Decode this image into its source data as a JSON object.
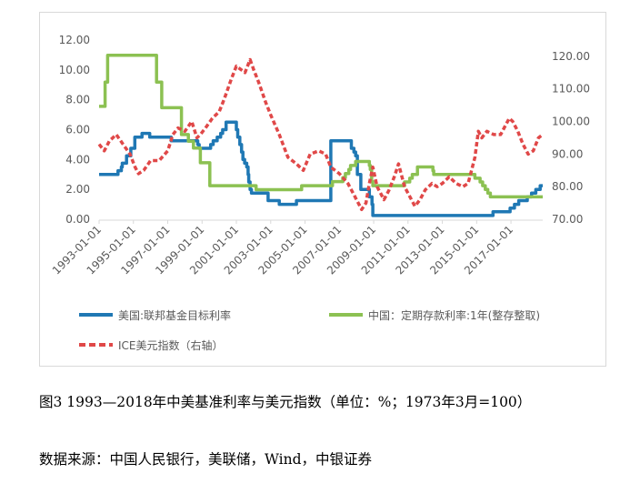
{
  "caption": {
    "title": "图3  1993—2018年中美基准利率与美元指数（单位：%；1973年3月=100）",
    "source": "数据来源：中国人民银行，美联储，Wind，中银证券"
  },
  "chart_data": {
    "type": "line",
    "title": "",
    "left_axis": {
      "ticks": [
        "0.00",
        "2.00",
        "4.00",
        "6.00",
        "8.00",
        "10.00",
        "12.00"
      ],
      "range": [
        0,
        12
      ]
    },
    "right_axis": {
      "ticks": [
        "70.00",
        "80.00",
        "90.00",
        "100.00",
        "110.00",
        "120.00"
      ],
      "range": [
        70,
        125
      ]
    },
    "x_axis": {
      "ticks": [
        "1993-01-01",
        "1995-01-01",
        "1997-01-01",
        "1999-01-01",
        "2001-01-01",
        "2003-01-01",
        "2005-01-01",
        "2007-01-01",
        "2009-01-01",
        "2011-01-01",
        "2013-01-01",
        "2015-01-01",
        "2017-01-01"
      ],
      "range": [
        1993.0,
        2018.85
      ]
    },
    "grid": false,
    "legend_position": "bottom",
    "colors": {
      "us": "#1f78b4",
      "cn": "#8cc152",
      "dxy": "#e04848"
    },
    "series": [
      {
        "name": "美国:联邦基金目标利率",
        "axis": "left",
        "style": "solid",
        "color": "#1f78b4",
        "x": [
          1993.0,
          1994.1,
          1994.1,
          1994.3,
          1994.3,
          1994.35,
          1994.35,
          1994.6,
          1994.6,
          1994.85,
          1994.85,
          1995.08,
          1995.08,
          1995.5,
          1995.5,
          1995.95,
          1995.95,
          1997.2,
          1997.2,
          1998.75,
          1998.75,
          1998.83,
          1998.83,
          1998.88,
          1998.88,
          1999.5,
          1999.5,
          1999.65,
          1999.65,
          1999.88,
          1999.88,
          2000.08,
          2000.08,
          2000.2,
          2000.2,
          2000.4,
          2000.4,
          2001.0,
          2001.0,
          2001.08,
          2001.08,
          2001.2,
          2001.2,
          2001.3,
          2001.3,
          2001.38,
          2001.38,
          2001.48,
          2001.48,
          2001.6,
          2001.6,
          2001.68,
          2001.68,
          2001.72,
          2001.72,
          2001.8,
          2001.8,
          2001.88,
          2001.88,
          2001.95,
          2001.95,
          2002.85,
          2002.85,
          2003.5,
          2003.5,
          2004.5,
          2004.5,
          2006.5,
          2006.5,
          2007.7,
          2007.7,
          2007.85,
          2007.85,
          2007.95,
          2007.95,
          2008.05,
          2008.05,
          2008.25,
          2008.25,
          2008.75,
          2008.75,
          2008.9,
          2008.9,
          2008.95,
          2008.95,
          2015.95,
          2015.95,
          2016.95,
          2016.95,
          2017.2,
          2017.2,
          2017.45,
          2017.45,
          2017.95,
          2017.95,
          2018.2,
          2018.2,
          2018.45,
          2018.45,
          2018.7,
          2018.7,
          2018.85
        ],
        "y": [
          3.0,
          3.0,
          3.25,
          3.25,
          3.5,
          3.5,
          3.75,
          3.75,
          4.25,
          4.25,
          4.75,
          4.75,
          5.5,
          5.5,
          5.75,
          5.75,
          5.5,
          5.5,
          5.25,
          5.25,
          5.0,
          5.0,
          4.75,
          4.75,
          4.75,
          4.75,
          5.0,
          5.0,
          5.25,
          5.25,
          5.5,
          5.5,
          5.75,
          5.75,
          6.0,
          6.0,
          6.5,
          6.5,
          6.0,
          6.0,
          5.5,
          5.5,
          5.0,
          5.0,
          4.5,
          4.5,
          4.0,
          4.0,
          3.75,
          3.75,
          3.5,
          3.5,
          3.0,
          3.0,
          2.5,
          2.5,
          2.0,
          2.0,
          1.75,
          1.75,
          1.75,
          1.75,
          1.25,
          1.25,
          1.0,
          1.0,
          1.25,
          1.25,
          5.25,
          5.25,
          4.75,
          4.75,
          4.5,
          4.5,
          4.25,
          4.25,
          3.0,
          3.0,
          2.0,
          2.0,
          1.5,
          1.5,
          1.0,
          1.0,
          0.25,
          0.25,
          0.5,
          0.5,
          0.75,
          0.75,
          1.0,
          1.0,
          1.25,
          1.25,
          1.5,
          1.5,
          1.75,
          1.75,
          2.0,
          2.0,
          2.25,
          2.25
        ]
      },
      {
        "name": "中国：定期存款利率:1年(整存整取)",
        "axis": "left",
        "style": "solid",
        "color": "#8cc152",
        "x": [
          1993.0,
          1993.35,
          1993.35,
          1993.5,
          1993.5,
          1996.35,
          1996.35,
          1996.65,
          1996.65,
          1997.8,
          1997.8,
          1998.2,
          1998.2,
          1998.5,
          1998.5,
          1998.9,
          1998.9,
          1999.45,
          1999.45,
          2002.15,
          2002.15,
          2004.8,
          2004.8,
          2006.6,
          2006.6,
          2007.2,
          2007.2,
          2007.35,
          2007.35,
          2007.55,
          2007.55,
          2007.65,
          2007.65,
          2007.95,
          2007.95,
          2008.75,
          2008.75,
          2008.8,
          2008.8,
          2008.88,
          2008.88,
          2008.95,
          2008.95,
          2010.8,
          2010.8,
          2011.1,
          2011.1,
          2011.25,
          2011.25,
          2011.55,
          2011.55,
          2012.45,
          2012.45,
          2012.5,
          2012.5,
          2014.9,
          2014.9,
          2015.2,
          2015.2,
          2015.35,
          2015.35,
          2015.5,
          2015.5,
          2015.65,
          2015.65,
          2015.8,
          2015.8,
          2018.85
        ],
        "y": [
          7.56,
          7.56,
          9.18,
          9.18,
          10.98,
          10.98,
          9.18,
          9.18,
          7.47,
          7.47,
          5.67,
          5.67,
          5.22,
          5.22,
          4.77,
          4.77,
          3.78,
          3.78,
          2.25,
          2.25,
          1.98,
          1.98,
          2.25,
          2.25,
          2.52,
          2.52,
          2.79,
          2.79,
          3.06,
          3.06,
          3.33,
          3.33,
          3.6,
          3.6,
          3.87,
          3.87,
          3.6,
          3.6,
          3.33,
          3.33,
          2.52,
          2.52,
          2.25,
          2.25,
          2.5,
          2.5,
          2.75,
          2.75,
          3.0,
          3.0,
          3.5,
          3.5,
          3.25,
          3.25,
          3.0,
          3.0,
          2.75,
          2.75,
          2.5,
          2.5,
          2.25,
          2.25,
          2.0,
          2.0,
          1.75,
          1.75,
          1.5,
          1.5
        ]
      },
      {
        "name": "ICE美元指数（右轴）",
        "axis": "right",
        "style": "dashed",
        "color": "#e04848",
        "x": [
          1993.0,
          1993.3,
          1993.6,
          1994.0,
          1994.4,
          1994.8,
          1995.1,
          1995.3,
          1995.6,
          1996.0,
          1996.5,
          1997.0,
          1997.3,
          1997.6,
          1998.0,
          1998.4,
          1998.7,
          1998.9,
          1999.2,
          1999.6,
          2000.0,
          2000.3,
          2000.7,
          2001.0,
          2001.5,
          2001.8,
          2002.0,
          2002.3,
          2002.7,
          2003.0,
          2003.5,
          2004.0,
          2004.5,
          2004.9,
          2005.3,
          2005.8,
          2006.2,
          2006.5,
          2007.0,
          2007.5,
          2007.9,
          2008.3,
          2008.55,
          2008.75,
          2008.95,
          2009.2,
          2009.6,
          2009.9,
          2010.2,
          2010.45,
          2010.8,
          2011.1,
          2011.4,
          2011.7,
          2012.0,
          2012.4,
          2012.7,
          2013.0,
          2013.4,
          2013.8,
          2014.2,
          2014.5,
          2014.7,
          2014.9,
          2015.1,
          2015.3,
          2015.6,
          2016.0,
          2016.4,
          2016.9,
          2017.1,
          2017.4,
          2017.7,
          2018.0,
          2018.3,
          2018.6,
          2018.85
        ],
        "y": [
          93,
          91,
          94,
          96,
          93,
          90,
          86,
          84,
          85,
          88,
          88,
          91,
          96,
          98,
          97,
          100,
          95,
          96,
          98,
          101,
          103,
          107,
          113,
          117,
          115,
          119,
          116,
          112,
          106,
          102,
          96,
          89,
          87,
          85,
          90,
          91,
          90,
          86,
          84,
          81,
          77,
          73,
          75,
          81,
          86,
          80,
          76,
          79,
          83,
          87,
          80,
          77,
          74,
          76,
          79,
          81,
          80,
          81,
          83,
          81,
          80,
          81,
          85,
          89,
          97,
          95,
          97,
          96,
          96,
          101,
          100,
          97,
          93,
          90,
          91,
          95,
          96
        ]
      }
    ]
  }
}
